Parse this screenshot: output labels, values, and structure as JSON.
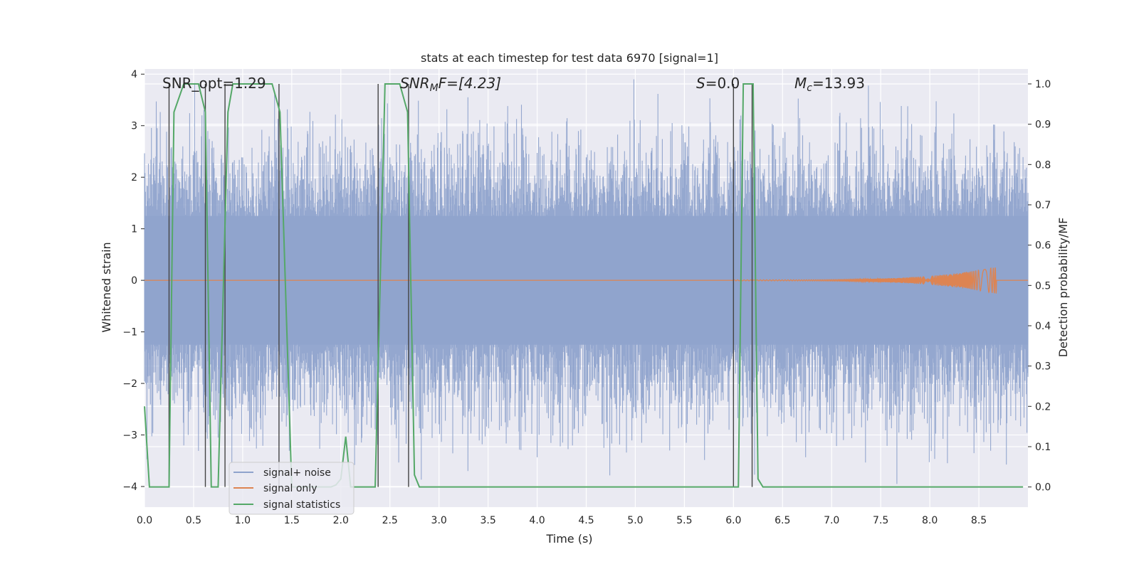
{
  "chart_data": {
    "type": "line",
    "title": "stats at each timestep for test data 6970 [signal=1]",
    "xlabel": "Time (s)",
    "ylabel_left": "Whitened strain",
    "ylabel_right": "Detection probability/MF",
    "xlim": [
      0,
      9.0
    ],
    "ylim_left": [
      -4.4,
      4.1
    ],
    "ylim_right": [
      -0.05,
      1.037
    ],
    "x_ticks": [
      "0.0",
      "0.5",
      "1.0",
      "1.5",
      "2.0",
      "2.5",
      "3.0",
      "3.5",
      "4.0",
      "4.5",
      "5.0",
      "5.5",
      "6.0",
      "6.5",
      "7.0",
      "7.5",
      "8.0",
      "8.5"
    ],
    "y_left_ticks": [
      "4",
      "3",
      "2",
      "1",
      "0",
      "−1",
      "−2",
      "−3",
      "−4"
    ],
    "y_right_ticks": [
      "1.0",
      "0.9",
      "0.8",
      "0.7",
      "0.6",
      "0.5",
      "0.4",
      "0.3",
      "0.2",
      "0.1",
      "0.0"
    ],
    "grid": true,
    "colors": {
      "noise": "#8fa3cc",
      "signal": "#dd8452",
      "stats": "#55a868",
      "vline": "#444444",
      "bg": "#eaeaf2"
    },
    "annotations": {
      "snr_opt": "SNR_opt=1.29",
      "snr_mf_prefix": "SNR",
      "snr_mf_sub": "M",
      "snr_mf_suffix": "F=[4.23]",
      "s_name": "S",
      "s_value": "=0.0",
      "mc_name": "M",
      "mc_sub": "c",
      "mc_value": "=13.93"
    },
    "series": [
      {
        "name": "signal statistics",
        "x": [
          0.0,
          0.05,
          0.25,
          0.3,
          0.4,
          0.55,
          0.62,
          0.68,
          0.75,
          0.85,
          0.9,
          1.3,
          1.38,
          1.5,
          1.55,
          1.9,
          1.95,
          2.0,
          2.05,
          2.1,
          2.3,
          2.35,
          2.45,
          2.6,
          2.68,
          2.75,
          2.8,
          2.85,
          5.5,
          5.9,
          6.0,
          6.05,
          6.1,
          6.15,
          6.2,
          6.25,
          6.3,
          6.35,
          8.95
        ],
        "y": [
          0.2,
          0.0,
          0.0,
          0.93,
          1.0,
          1.0,
          0.93,
          0.0,
          0.0,
          0.93,
          1.0,
          1.0,
          0.93,
          0.0,
          0.0,
          0.0,
          0.005,
          0.02,
          0.125,
          0.0,
          0.0,
          0.0,
          1.0,
          1.0,
          0.93,
          0.03,
          0.0,
          0.0,
          0.0,
          0.0,
          0.0,
          0.0,
          1.0,
          1.0,
          1.0,
          0.02,
          0.0,
          0.0,
          0.0
        ]
      }
    ],
    "detection_windows": [
      [
        0.25,
        0.62
      ],
      [
        0.82,
        1.37
      ],
      [
        2.38,
        2.69
      ],
      [
        6.0,
        6.19
      ]
    ],
    "legend": [
      "signal+ noise",
      "signal only",
      "signal statistics"
    ]
  }
}
